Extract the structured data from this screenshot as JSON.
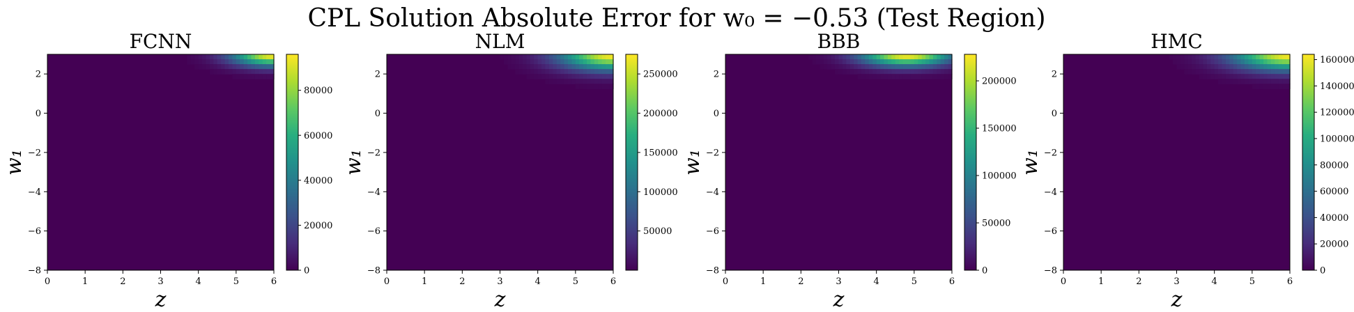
{
  "figure": {
    "title": "CPL Solution Absolute Error for w₀ = −0.53 (Test Region)"
  },
  "chart_data": [
    {
      "type": "heatmap",
      "title": "FCNN",
      "xlabel": "z",
      "ylabel": "w₁",
      "xlim": [
        0,
        6
      ],
      "ylim": [
        -8,
        3
      ],
      "xticks": [
        "0",
        "1",
        "2",
        "3",
        "4",
        "5",
        "6"
      ],
      "yticks": [
        "−8",
        "−6",
        "−4",
        "−2",
        "0",
        "2"
      ],
      "colormap": "viridis",
      "colorbar": {
        "min": 0,
        "max": 96000,
        "ticks": [
          0,
          20000,
          40000,
          60000,
          80000
        ]
      },
      "hotspot": {
        "z_center": 6.0,
        "w1_center": 3.0,
        "z_extent": 1.1,
        "w1_extent": 0.6,
        "peak": 96000
      }
    },
    {
      "type": "heatmap",
      "title": "NLM",
      "xlabel": "z",
      "ylabel": "w₁",
      "xlim": [
        0,
        6
      ],
      "ylim": [
        -8,
        3
      ],
      "xticks": [
        "0",
        "1",
        "2",
        "3",
        "4",
        "5",
        "6"
      ],
      "yticks": [
        "−8",
        "−6",
        "−4",
        "−2",
        "0",
        "2"
      ],
      "colormap": "viridis",
      "colorbar": {
        "min": 0,
        "max": 275000,
        "ticks": [
          50000,
          100000,
          150000,
          200000,
          250000
        ]
      },
      "hotspot": {
        "z_center": 6.0,
        "w1_center": 3.0,
        "z_extent": 1.4,
        "w1_extent": 0.8,
        "peak": 275000
      }
    },
    {
      "type": "heatmap",
      "title": "BBB",
      "xlabel": "z",
      "ylabel": "w₁",
      "xlim": [
        0,
        6
      ],
      "ylim": [
        -8,
        3
      ],
      "xticks": [
        "0",
        "1",
        "2",
        "3",
        "4",
        "5",
        "6"
      ],
      "yticks": [
        "−8",
        "−6",
        "−4",
        "−2",
        "0",
        "2"
      ],
      "colormap": "viridis",
      "colorbar": {
        "min": 0,
        "max": 228000,
        "ticks": [
          0,
          50000,
          100000,
          150000,
          200000
        ]
      },
      "hotspot": {
        "z_center": 4.8,
        "w1_center": 3.0,
        "z_extent": 1.2,
        "w1_extent": 0.6,
        "peak": 228000
      }
    },
    {
      "type": "heatmap",
      "title": "HMC",
      "xlabel": "z",
      "ylabel": "w₁",
      "xlim": [
        0,
        6
      ],
      "ylim": [
        -8,
        3
      ],
      "xticks": [
        "0",
        "1",
        "2",
        "3",
        "4",
        "5",
        "6"
      ],
      "yticks": [
        "−8",
        "−6",
        "−4",
        "−2",
        "0",
        "2"
      ],
      "colormap": "viridis",
      "colorbar": {
        "min": 0,
        "max": 164000,
        "ticks": [
          0,
          20000,
          40000,
          60000,
          80000,
          100000,
          120000,
          140000,
          160000
        ]
      },
      "hotspot": {
        "z_center": 6.0,
        "w1_center": 3.0,
        "z_extent": 1.5,
        "w1_extent": 0.8,
        "peak": 164000
      }
    }
  ]
}
